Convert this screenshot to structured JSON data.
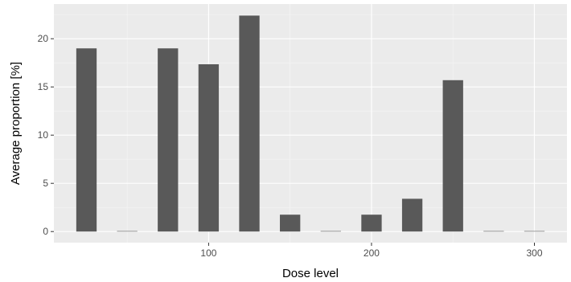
{
  "chart_data": {
    "type": "bar",
    "title": "",
    "xlabel": "Dose level",
    "ylabel": "Average proportion [%]",
    "x": [
      25,
      50,
      75,
      100,
      125,
      150,
      175,
      200,
      225,
      250,
      275,
      300
    ],
    "values": [
      19.0,
      0.05,
      19.0,
      17.35,
      22.4,
      1.75,
      0.05,
      1.75,
      3.4,
      15.7,
      0.05,
      0.05
    ],
    "xlim": [
      5,
      320
    ],
    "ylim": [
      -1.15,
      23.6
    ],
    "x_ticks": [
      100,
      200,
      300
    ],
    "y_ticks": [
      0,
      5,
      10,
      15,
      20
    ],
    "bar_width": 12.5,
    "grid": true,
    "colors": {
      "bar": "#595959",
      "panel": "#ebebeb",
      "grid_major": "#ffffff",
      "grid_minor": "#f5f5f5"
    }
  }
}
